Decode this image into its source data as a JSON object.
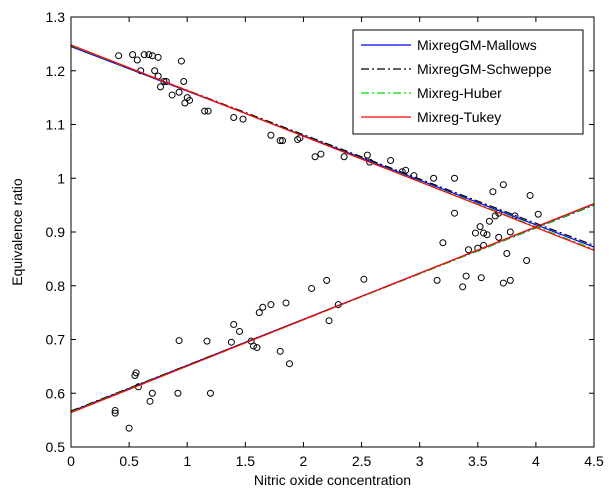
{
  "chart_data": {
    "type": "scatter",
    "title": "",
    "xlabel": "Nitric oxide concentration",
    "ylabel": "Equivalence ratio",
    "xlim": [
      0,
      4.5
    ],
    "ylim": [
      0.5,
      1.3
    ],
    "xticks": [
      0,
      0.5,
      1,
      1.5,
      2,
      2.5,
      3,
      3.5,
      4,
      4.5
    ],
    "xtick_labels": [
      "0",
      "0.5",
      "1",
      "1.5",
      "2",
      "2.5",
      "3",
      "3.5",
      "4",
      "4.5"
    ],
    "yticks": [
      0.5,
      0.6,
      0.7,
      0.8,
      0.9,
      1,
      1.1,
      1.2,
      1.3
    ],
    "ytick_labels": [
      "0.5",
      "0.6",
      "0.7",
      "0.8",
      "0.9",
      "1",
      "1.1",
      "1.2",
      "1.3"
    ],
    "grid": false,
    "legend_position": "top-right",
    "points": [
      [
        0.41,
        1.228
      ],
      [
        0.53,
        1.23
      ],
      [
        0.57,
        1.22
      ],
      [
        0.6,
        1.2
      ],
      [
        0.63,
        1.23
      ],
      [
        0.67,
        1.23
      ],
      [
        0.7,
        1.228
      ],
      [
        0.72,
        1.2
      ],
      [
        0.75,
        1.225
      ],
      [
        0.75,
        1.19
      ],
      [
        0.77,
        1.17
      ],
      [
        0.8,
        1.18
      ],
      [
        0.82,
        1.18
      ],
      [
        0.87,
        1.155
      ],
      [
        0.93,
        1.16
      ],
      [
        0.95,
        1.218
      ],
      [
        0.97,
        1.18
      ],
      [
        0.98,
        1.14
      ],
      [
        1.0,
        1.15
      ],
      [
        1.02,
        1.145
      ],
      [
        1.15,
        1.125
      ],
      [
        1.18,
        1.125
      ],
      [
        1.4,
        1.113
      ],
      [
        1.48,
        1.11
      ],
      [
        1.72,
        1.08
      ],
      [
        1.8,
        1.07
      ],
      [
        1.82,
        1.07
      ],
      [
        1.95,
        1.072
      ],
      [
        1.97,
        1.075
      ],
      [
        2.1,
        1.04
      ],
      [
        2.15,
        1.045
      ],
      [
        2.35,
        1.04
      ],
      [
        2.55,
        1.043
      ],
      [
        2.57,
        1.03
      ],
      [
        2.75,
        1.033
      ],
      [
        2.85,
        1.012
      ],
      [
        2.88,
        1.015
      ],
      [
        2.95,
        1.005
      ],
      [
        3.12,
        1.0
      ],
      [
        3.3,
        1.0
      ],
      [
        3.3,
        0.935
      ],
      [
        3.52,
        0.91
      ],
      [
        3.55,
        0.898
      ],
      [
        3.6,
        0.92
      ],
      [
        3.63,
        0.975
      ],
      [
        3.65,
        0.93
      ],
      [
        3.68,
        0.935
      ],
      [
        3.72,
        0.988
      ],
      [
        3.78,
        0.9
      ],
      [
        3.82,
        0.93
      ],
      [
        3.95,
        0.968
      ],
      [
        4.02,
        0.933
      ],
      [
        0.38,
        0.568
      ],
      [
        0.38,
        0.563
      ],
      [
        0.5,
        0.535
      ],
      [
        0.55,
        0.633
      ],
      [
        0.56,
        0.638
      ],
      [
        0.58,
        0.612
      ],
      [
        0.68,
        0.585
      ],
      [
        0.7,
        0.6
      ],
      [
        0.92,
        0.6
      ],
      [
        0.93,
        0.698
      ],
      [
        1.17,
        0.697
      ],
      [
        1.2,
        0.6
      ],
      [
        1.38,
        0.695
      ],
      [
        1.4,
        0.728
      ],
      [
        1.45,
        0.715
      ],
      [
        1.55,
        0.697
      ],
      [
        1.57,
        0.688
      ],
      [
        1.6,
        0.685
      ],
      [
        1.62,
        0.75
      ],
      [
        1.65,
        0.76
      ],
      [
        1.72,
        0.765
      ],
      [
        1.8,
        0.678
      ],
      [
        1.85,
        0.768
      ],
      [
        1.88,
        0.655
      ],
      [
        2.07,
        0.795
      ],
      [
        2.2,
        0.81
      ],
      [
        2.22,
        0.735
      ],
      [
        2.3,
        0.765
      ],
      [
        2.52,
        0.812
      ],
      [
        3.15,
        0.81
      ],
      [
        3.2,
        0.88
      ],
      [
        3.37,
        0.798
      ],
      [
        3.4,
        0.818
      ],
      [
        3.42,
        0.867
      ],
      [
        3.48,
        0.898
      ],
      [
        3.5,
        0.87
      ],
      [
        3.53,
        0.815
      ],
      [
        3.55,
        0.875
      ],
      [
        3.58,
        0.895
      ],
      [
        3.68,
        0.89
      ],
      [
        3.72,
        0.805
      ],
      [
        3.75,
        0.86
      ],
      [
        3.78,
        0.81
      ],
      [
        3.92,
        0.847
      ]
    ],
    "series": [
      {
        "name": "MixregGM-Mallows",
        "color": "#0000ff",
        "dash": "solid",
        "lines": [
          {
            "x": [
              0,
              4.5
            ],
            "y": [
              1.245,
              0.872
            ]
          },
          {
            "x": [
              0,
              4.5
            ],
            "y": [
              0.566,
              0.952
            ]
          }
        ]
      },
      {
        "name": "MixregGM-Schweppe",
        "color": "#000000",
        "dash": "dashdot",
        "lines": [
          {
            "x": [
              0,
              4.5
            ],
            "y": [
              1.246,
              0.875
            ]
          },
          {
            "x": [
              0,
              4.5
            ],
            "y": [
              0.567,
              0.95
            ]
          }
        ]
      },
      {
        "name": "Mixreg-Huber",
        "color": "#00dd00",
        "dash": "dashdot",
        "lines": [
          {
            "x": [
              0,
              4.5
            ],
            "y": [
              1.247,
              0.868
            ]
          },
          {
            "x": [
              0,
              4.5
            ],
            "y": [
              0.565,
              0.951
            ]
          }
        ]
      },
      {
        "name": "Mixreg-Tukey",
        "color": "#ff0000",
        "dash": "solid",
        "lines": [
          {
            "x": [
              0,
              4.5
            ],
            "y": [
              1.248,
              0.866
            ]
          },
          {
            "x": [
              0,
              4.5
            ],
            "y": [
              0.564,
              0.953
            ]
          }
        ]
      }
    ]
  }
}
